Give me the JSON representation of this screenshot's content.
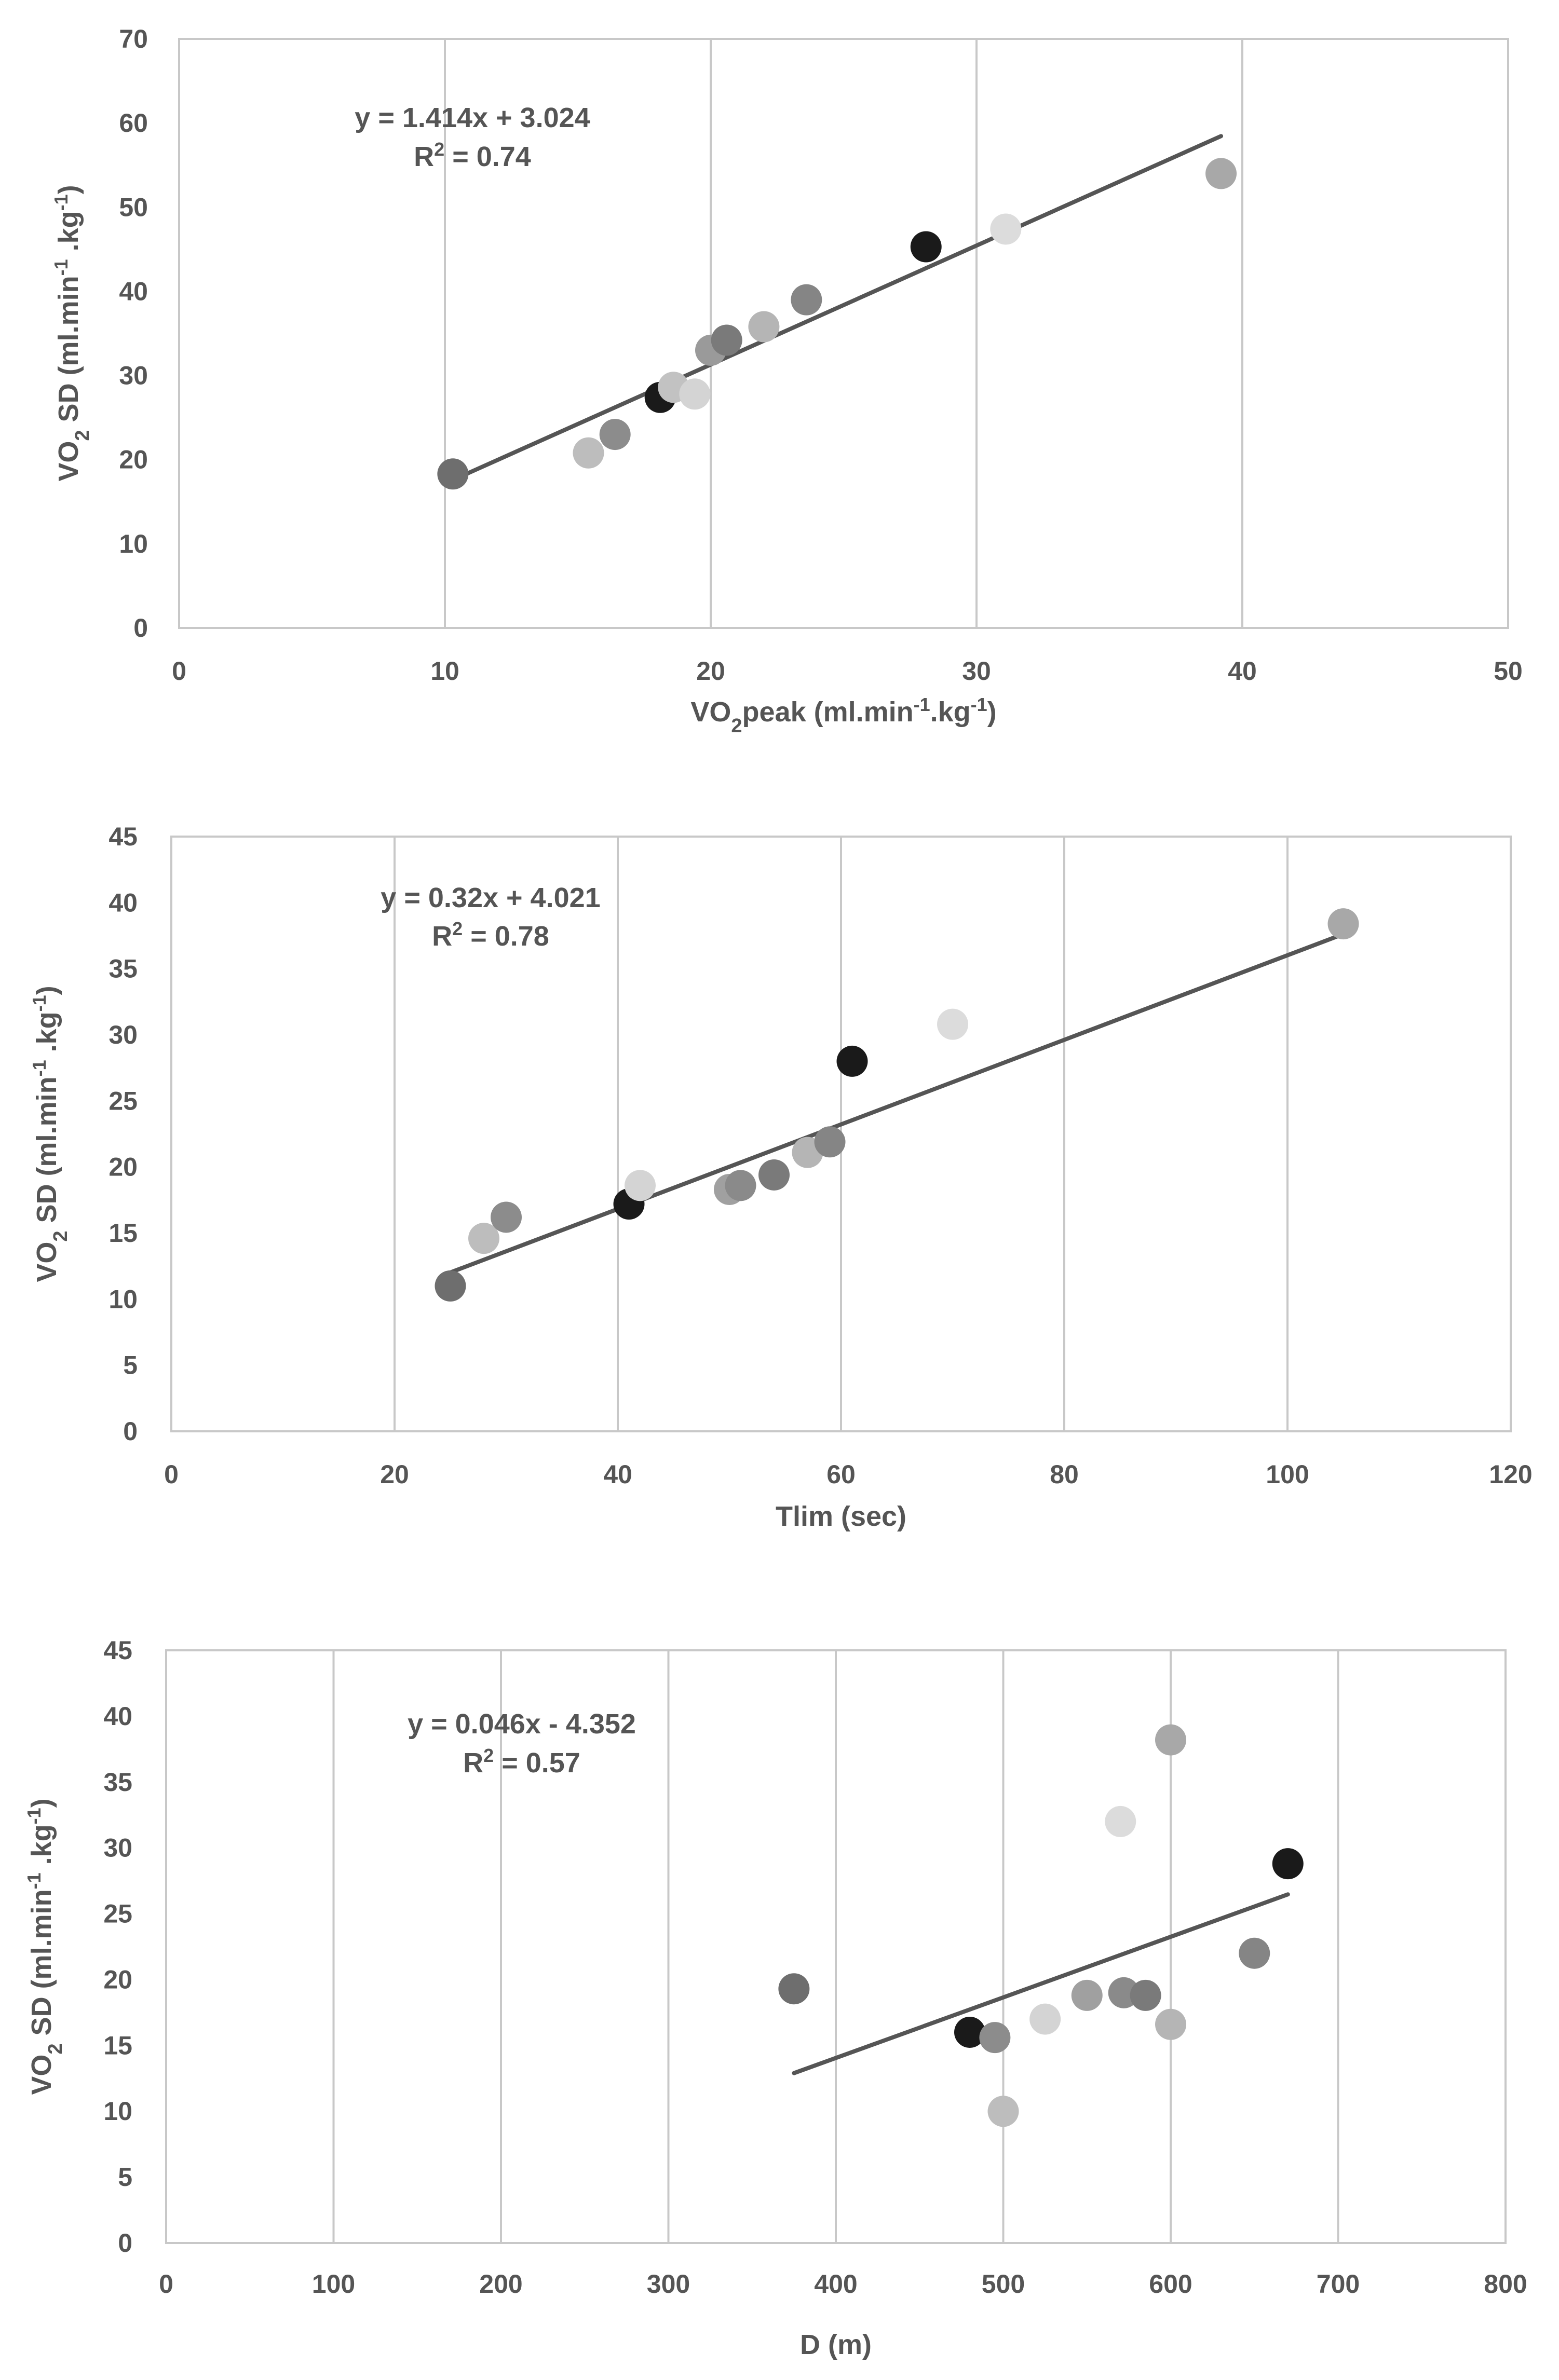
{
  "chart_data": [
    {
      "type": "scatter",
      "title": "",
      "xlabel": "VO2peak (ml.min-1.kg-1)",
      "xlabel_parts": {
        "base": "VO",
        "sub": "2",
        "rest1": "peak (ml.min",
        "sup1": "-1",
        "rest2": ".kg",
        "sup2": "-1",
        "rest3": ")"
      },
      "ylabel": "VO2 SD (ml.min-1 .kg-1)",
      "ylabel_parts": {
        "base": "VO",
        "sub": "2",
        "rest1": " SD (ml.min",
        "sup1": "-1",
        "rest2": " .kg",
        "sup2": "-1",
        "rest3": ")"
      },
      "xlim": [
        0,
        50
      ],
      "ylim": [
        0,
        70
      ],
      "xticks": [
        0,
        10,
        20,
        30,
        40,
        50
      ],
      "yticks": [
        0,
        10,
        20,
        30,
        40,
        50,
        60,
        70
      ],
      "xtick_labels": [
        "0",
        "10",
        "20",
        "30",
        "40",
        "50"
      ],
      "ytick_labels": [
        "0",
        "10",
        "20",
        "30",
        "40",
        "50",
        "60",
        "70"
      ],
      "grid": "vertical",
      "points": [
        {
          "x": 10.3,
          "y": 18.3,
          "color": "#6e6e6e"
        },
        {
          "x": 15.4,
          "y": 20.8,
          "color": "#bdbdbd"
        },
        {
          "x": 16.4,
          "y": 23.0,
          "color": "#8c8c8c"
        },
        {
          "x": 18.1,
          "y": 27.4,
          "color": "#1a1a1a"
        },
        {
          "x": 18.6,
          "y": 28.6,
          "color": "#c2c2c2"
        },
        {
          "x": 19.4,
          "y": 27.8,
          "color": "#d4d4d4"
        },
        {
          "x": 20.0,
          "y": 33.0,
          "color": "#9a9a9a"
        },
        {
          "x": 20.6,
          "y": 34.2,
          "color": "#7a7a7a"
        },
        {
          "x": 22.0,
          "y": 35.8,
          "color": "#b5b5b5"
        },
        {
          "x": 23.6,
          "y": 39.0,
          "color": "#858585"
        },
        {
          "x": 28.1,
          "y": 45.3,
          "color": "#1a1a1a"
        },
        {
          "x": 31.1,
          "y": 47.4,
          "color": "#dcdcdc"
        },
        {
          "x": 39.2,
          "y": 54.0,
          "color": "#a8a8a8"
        }
      ],
      "trendline": {
        "x_start": 10.8,
        "x_end": 39.2
      },
      "equation": "y = 1.414x + 3.024",
      "r2_parts": {
        "prefix": "R",
        "sup": "2",
        "suffix": " = 0.74"
      }
    },
    {
      "type": "scatter",
      "title": "",
      "xlabel": "Tlim (sec)",
      "ylabel": "VO2 SD (ml.min-1 .kg-1)",
      "ylabel_parts": {
        "base": "VO",
        "sub": "2",
        "rest1": " SD (ml.min",
        "sup1": "-1",
        "rest2": " .kg",
        "sup2": "-1",
        "rest3": ")"
      },
      "xlim": [
        0,
        120
      ],
      "ylim": [
        0,
        45
      ],
      "xticks": [
        0,
        20,
        40,
        60,
        80,
        100,
        120
      ],
      "yticks": [
        0,
        5,
        10,
        15,
        20,
        25,
        30,
        35,
        40,
        45
      ],
      "xtick_labels": [
        "0",
        "20",
        "40",
        "60",
        "80",
        "100",
        "120"
      ],
      "ytick_labels": [
        "0",
        "5",
        "10",
        "15",
        "20",
        "25",
        "30",
        "35",
        "40",
        "45"
      ],
      "grid": "vertical",
      "points": [
        {
          "x": 25,
          "y": 11.0,
          "color": "#6e6e6e"
        },
        {
          "x": 28,
          "y": 14.6,
          "color": "#bdbdbd"
        },
        {
          "x": 30,
          "y": 16.2,
          "color": "#8c8c8c"
        },
        {
          "x": 41,
          "y": 17.2,
          "color": "#1a1a1a"
        },
        {
          "x": 42,
          "y": 18.6,
          "color": "#d4d4d4"
        },
        {
          "x": 50,
          "y": 18.3,
          "color": "#a0a0a0"
        },
        {
          "x": 51,
          "y": 18.6,
          "color": "#8a8a8a"
        },
        {
          "x": 54,
          "y": 19.4,
          "color": "#7a7a7a"
        },
        {
          "x": 57,
          "y": 21.1,
          "color": "#b5b5b5"
        },
        {
          "x": 59,
          "y": 21.9,
          "color": "#858585"
        },
        {
          "x": 61,
          "y": 28.0,
          "color": "#1a1a1a"
        },
        {
          "x": 70,
          "y": 30.8,
          "color": "#dcdcdc"
        },
        {
          "x": 105,
          "y": 38.4,
          "color": "#a8a8a8"
        }
      ],
      "trendline": {
        "x_start": 25,
        "x_end": 105
      },
      "equation": "y = 0.32x + 4.021",
      "r2_parts": {
        "prefix": "R",
        "sup": "2",
        "suffix": " = 0.78"
      }
    },
    {
      "type": "scatter",
      "title": "",
      "xlabel": "D (m)",
      "ylabel": "VO2 SD (ml.min-1 .kg-1)",
      "ylabel_parts": {
        "base": "VO",
        "sub": "2",
        "rest1": " SD (ml.min",
        "sup1": "-1",
        "rest2": " .kg",
        "sup2": "-1",
        "rest3": ")"
      },
      "xlim": [
        0,
        800
      ],
      "ylim": [
        0,
        45
      ],
      "xticks": [
        0,
        100,
        200,
        300,
        400,
        500,
        600,
        700,
        800
      ],
      "yticks": [
        0,
        5,
        10,
        15,
        20,
        25,
        30,
        35,
        40,
        45
      ],
      "xtick_labels": [
        "0",
        "100",
        "200",
        "300",
        "400",
        "500",
        "600",
        "700",
        "800"
      ],
      "ytick_labels": [
        "0",
        "5",
        "10",
        "15",
        "20",
        "25",
        "30",
        "35",
        "40",
        "45"
      ],
      "grid": "vertical",
      "points": [
        {
          "x": 375,
          "y": 19.3,
          "color": "#6e6e6e"
        },
        {
          "x": 480,
          "y": 16.0,
          "color": "#1a1a1a"
        },
        {
          "x": 495,
          "y": 15.6,
          "color": "#8c8c8c"
        },
        {
          "x": 500,
          "y": 10.0,
          "color": "#bdbdbd"
        },
        {
          "x": 525,
          "y": 17.0,
          "color": "#d4d4d4"
        },
        {
          "x": 550,
          "y": 18.8,
          "color": "#a0a0a0"
        },
        {
          "x": 570,
          "y": 32.0,
          "color": "#dcdcdc"
        },
        {
          "x": 572,
          "y": 19.0,
          "color": "#8a8a8a"
        },
        {
          "x": 585,
          "y": 18.8,
          "color": "#7a7a7a"
        },
        {
          "x": 600,
          "y": 38.2,
          "color": "#a8a8a8"
        },
        {
          "x": 600,
          "y": 16.6,
          "color": "#b5b5b5"
        },
        {
          "x": 650,
          "y": 22.0,
          "color": "#858585"
        },
        {
          "x": 670,
          "y": 28.8,
          "color": "#1a1a1a"
        }
      ],
      "trendline": {
        "x_start": 375,
        "x_end": 670
      },
      "equation": "y = 0.046x - 4.352",
      "r2_parts": {
        "prefix": "R",
        "sup": "2",
        "suffix": " = 0.57"
      }
    }
  ]
}
